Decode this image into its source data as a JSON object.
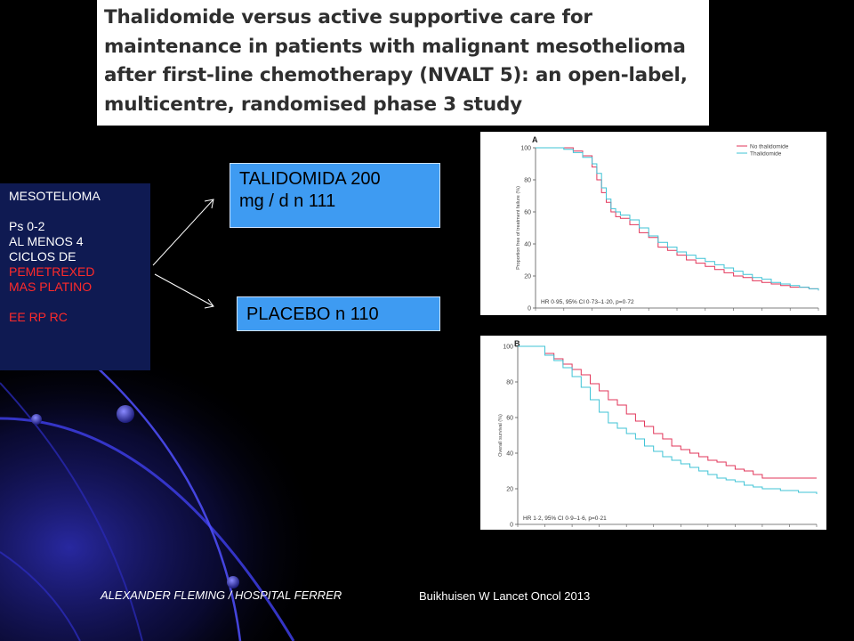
{
  "title": "Thalidomide versus active supportive care for maintenance in patients with malignant mesothelioma after first-line chemotherapy (NVALT 5): an open-label, multicentre, randomised phase 3 study",
  "criteria": {
    "l1": "MESOTELIOMA",
    "l2": "Ps 0-2",
    "l3": "AL MENOS  4",
    "l4": "CICLOS DE",
    "l5": "PEMETREXED",
    "l6": "MAS PLATINO",
    "l7": "EE RP RC"
  },
  "arms": {
    "arm1_line1": "TALIDOMIDA  200",
    "arm1_line2": "mg / d n 111",
    "arm2": "PLACEBO n 110"
  },
  "footer": {
    "left": "ALEXANDER FLEMING / HOSPITAL  FERRER",
    "right": "Buikhuisen W Lancet Oncol 2013"
  },
  "colors": {
    "no_thalidomide": "#e2365a",
    "thalidomide": "#3fc3d6",
    "arm_box": "#3e9bf2",
    "criteria_box": "#0f1a52"
  },
  "chart_data": [
    {
      "type": "line",
      "panel": "A",
      "ylabel": "Proportion free of treatment failure (%)",
      "ylim": [
        0,
        100
      ],
      "yticks": [
        0,
        20,
        40,
        60,
        80,
        100
      ],
      "annotation": "HR 0·95, 95% CI 0·73–1·20, p=0·72",
      "legend": [
        "No thalidomide",
        "Thalidomide"
      ],
      "legend_position": "top-right",
      "xlim": [
        0,
        30
      ],
      "series": [
        {
          "name": "No thalidomide",
          "x": [
            0,
            3,
            4,
            5,
            6,
            6.5,
            7,
            7.5,
            8,
            8.5,
            9,
            10,
            11,
            12,
            13,
            14,
            15,
            16,
            17,
            18,
            19,
            20,
            21,
            22,
            23,
            24,
            25,
            26,
            27,
            28,
            29,
            30
          ],
          "y": [
            100,
            100,
            98,
            95,
            88,
            80,
            72,
            66,
            60,
            57,
            56,
            52,
            47,
            44,
            38,
            36,
            33,
            30,
            28,
            26,
            24,
            22,
            20,
            19,
            17,
            16,
            15,
            14,
            13,
            13,
            12,
            11
          ]
        },
        {
          "name": "Thalidomide",
          "x": [
            0,
            3,
            4,
            5,
            6,
            6.5,
            7,
            7.5,
            8,
            8.5,
            9,
            10,
            11,
            12,
            13,
            14,
            15,
            16,
            17,
            18,
            19,
            20,
            21,
            22,
            23,
            24,
            25,
            26,
            27,
            28,
            29,
            30
          ],
          "y": [
            100,
            99,
            97,
            94,
            90,
            84,
            75,
            68,
            62,
            60,
            58,
            55,
            50,
            45,
            41,
            38,
            35,
            33,
            31,
            29,
            27,
            25,
            23,
            21,
            19,
            18,
            16,
            15,
            14,
            13,
            12,
            11
          ]
        }
      ]
    },
    {
      "type": "line",
      "panel": "B",
      "ylabel": "Overall survival (%)",
      "ylim": [
        0,
        100
      ],
      "yticks": [
        0,
        20,
        40,
        60,
        80,
        100
      ],
      "annotation": "HR 1·2, 95% CI 0·9–1·6, p=0·21",
      "xlim": [
        0,
        33
      ],
      "series": [
        {
          "name": "No thalidomide",
          "x": [
            0,
            2,
            3,
            4,
            5,
            6,
            7,
            8,
            9,
            10,
            11,
            12,
            13,
            14,
            15,
            16,
            17,
            18,
            19,
            20,
            21,
            22,
            23,
            24,
            25,
            26,
            27,
            28,
            29,
            30,
            31,
            32,
            33
          ],
          "y": [
            100,
            100,
            96,
            93,
            90,
            87,
            84,
            79,
            75,
            70,
            67,
            62,
            58,
            55,
            51,
            48,
            44,
            42,
            40,
            38,
            36,
            35,
            33,
            31,
            30,
            28,
            26,
            26,
            26,
            26,
            26,
            26,
            26
          ]
        },
        {
          "name": "Thalidomide",
          "x": [
            0,
            2,
            3,
            4,
            5,
            6,
            7,
            8,
            9,
            10,
            11,
            12,
            13,
            14,
            15,
            16,
            17,
            18,
            19,
            20,
            21,
            22,
            23,
            24,
            25,
            26,
            27,
            28,
            29,
            30,
            31,
            32,
            33
          ],
          "y": [
            100,
            100,
            95,
            92,
            88,
            83,
            77,
            70,
            63,
            57,
            54,
            51,
            48,
            44,
            41,
            38,
            36,
            34,
            32,
            30,
            28,
            26,
            25,
            24,
            22,
            21,
            20,
            20,
            19,
            19,
            18,
            18,
            17
          ]
        }
      ]
    }
  ]
}
